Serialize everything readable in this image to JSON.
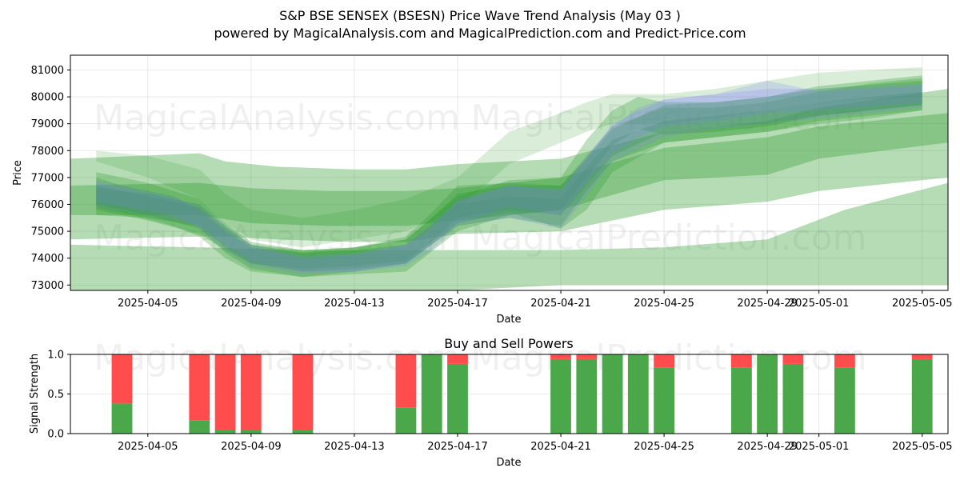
{
  "title": "S&P BSE SENSEX (BSESN) Price Wave Trend Analysis (May 03 )",
  "subtitle": "powered by MagicalAnalysis.com and MagicalPrediction.com and Predict-Price.com",
  "watermarks": [
    "MagicalAnalysis.com",
    "MagicalPrediction.com"
  ],
  "colors": {
    "band_green": "#2e9b2e",
    "band_blue": "#7b7bff",
    "buy": "#4aa84a",
    "sell": "#ff4c4c"
  },
  "chart_data": [
    {
      "type": "area",
      "xlabel": "Date",
      "ylabel": "Price",
      "x_ticks": [
        "2025-04-05",
        "2025-04-09",
        "2025-04-13",
        "2025-04-17",
        "2025-04-21",
        "2025-04-25",
        "2025-04-29",
        "2025-05-01",
        "2025-05-05"
      ],
      "y_ticks": [
        73000,
        74000,
        75000,
        76000,
        77000,
        78000,
        79000,
        80000,
        81000
      ],
      "ylim": [
        72800,
        81550
      ],
      "xlim": [
        "2025-04-02",
        "2025-05-06"
      ],
      "grid": true,
      "series": [
        {
          "x": [
            "2025-04-02",
            "2025-04-07",
            "2025-04-08",
            "2025-04-10",
            "2025-04-13",
            "2025-04-15",
            "2025-04-17",
            "2025-04-21",
            "2025-04-25",
            "2025-04-29",
            "2025-05-01",
            "2025-05-06"
          ],
          "low": [
            74700,
            74800,
            74800,
            74700,
            74600,
            74600,
            74900,
            75000,
            75800,
            76100,
            76500,
            77000
          ],
          "high": [
            77700,
            77900,
            77600,
            77400,
            77300,
            77300,
            77500,
            77700,
            78700,
            79100,
            79600,
            80300
          ]
        },
        {
          "x": [
            "2025-04-02",
            "2025-04-07",
            "2025-04-09",
            "2025-04-12",
            "2025-04-15",
            "2025-04-17",
            "2025-04-21",
            "2025-04-25",
            "2025-04-29",
            "2025-05-01",
            "2025-05-06"
          ],
          "low": [
            75600,
            75600,
            75300,
            75200,
            75200,
            75400,
            75800,
            76900,
            77100,
            77700,
            78300
          ],
          "high": [
            76700,
            76800,
            76600,
            76500,
            76500,
            76600,
            77000,
            78100,
            78500,
            78900,
            79400
          ]
        },
        {
          "x": [
            "2025-04-02",
            "2025-04-07",
            "2025-04-11",
            "2025-04-17",
            "2025-04-21",
            "2025-04-25",
            "2025-04-29",
            "2025-05-02",
            "2025-05-06"
          ],
          "low": [
            72800,
            72700,
            72700,
            72800,
            73000,
            73000,
            73000,
            73000,
            73000
          ],
          "high": [
            74500,
            74400,
            74300,
            74300,
            74300,
            74400,
            74700,
            75800,
            76800
          ]
        },
        {
          "x": [
            "2025-04-03",
            "2025-04-04",
            "2025-04-06",
            "2025-04-07",
            "2025-04-08",
            "2025-04-09",
            "2025-04-11",
            "2025-04-13",
            "2025-04-15",
            "2025-04-16",
            "2025-04-17",
            "2025-04-19",
            "2025-04-21",
            "2025-04-22",
            "2025-04-23",
            "2025-04-25",
            "2025-04-27",
            "2025-04-29",
            "2025-05-01",
            "2025-05-03",
            "2025-05-05"
          ],
          "low": [
            75900,
            75700,
            75200,
            74800,
            74000,
            73500,
            73300,
            73500,
            73800,
            74500,
            75300,
            75700,
            75100,
            75800,
            77200,
            78300,
            78500,
            78700,
            79000,
            79200,
            79500
          ],
          "high": [
            77000,
            76700,
            76300,
            75800,
            75000,
            74400,
            74200,
            74400,
            74800,
            75700,
            76700,
            76800,
            76700,
            77800,
            78900,
            79600,
            79600,
            79800,
            80200,
            80500,
            80700
          ]
        },
        {
          "x": [
            "2025-04-03",
            "2025-04-05",
            "2025-04-07",
            "2025-04-08",
            "2025-04-09",
            "2025-04-11",
            "2025-04-13",
            "2025-04-15",
            "2025-04-16",
            "2025-04-17",
            "2025-04-19",
            "2025-04-21",
            "2025-04-22",
            "2025-04-23",
            "2025-04-25",
            "2025-04-27",
            "2025-04-29",
            "2025-05-01",
            "2025-05-05"
          ],
          "low": [
            75800,
            75400,
            74900,
            74300,
            73800,
            73600,
            73700,
            73900,
            74600,
            75500,
            75800,
            75600,
            76700,
            77800,
            78700,
            78900,
            79000,
            79300,
            79700
          ],
          "high": [
            76700,
            76300,
            75900,
            75100,
            74500,
            74300,
            74400,
            74700,
            75500,
            76400,
            76700,
            76700,
            77700,
            78800,
            79700,
            79800,
            80000,
            80300,
            80600
          ]
        },
        {
          "x": [
            "2025-04-03",
            "2025-04-05",
            "2025-04-07",
            "2025-04-08",
            "2025-04-09",
            "2025-04-11",
            "2025-04-13",
            "2025-04-15",
            "2025-04-17",
            "2025-04-19",
            "2025-04-21",
            "2025-04-22",
            "2025-04-23",
            "2025-04-25",
            "2025-04-27",
            "2025-04-29",
            "2025-05-01",
            "2025-05-05"
          ],
          "low": [
            75600,
            75500,
            75200,
            74400,
            73800,
            73500,
            73600,
            73800,
            75200,
            75500,
            75200,
            76500,
            77600,
            78300,
            78500,
            78700,
            79100,
            79500
          ],
          "high": [
            76600,
            76400,
            76000,
            75200,
            74500,
            74200,
            74300,
            74500,
            76000,
            76300,
            76200,
            77400,
            78400,
            79100,
            79300,
            79500,
            79800,
            80200
          ]
        },
        {
          "x": [
            "2025-04-03",
            "2025-04-05",
            "2025-04-07",
            "2025-04-08",
            "2025-04-09",
            "2025-04-11",
            "2025-04-13",
            "2025-04-15",
            "2025-04-17",
            "2025-04-19",
            "2025-04-21",
            "2025-04-22",
            "2025-04-23",
            "2025-04-24",
            "2025-04-25",
            "2025-04-27",
            "2025-04-29",
            "2025-05-01",
            "2025-05-05"
          ],
          "low": [
            76000,
            75600,
            75100,
            74200,
            73600,
            73300,
            73400,
            73500,
            75000,
            75600,
            75800,
            77000,
            78200,
            78800,
            78600,
            78700,
            78900,
            79300,
            79700
          ],
          "high": [
            77200,
            76800,
            76200,
            75300,
            74600,
            74300,
            74400,
            74700,
            76300,
            76900,
            77000,
            78400,
            79500,
            80000,
            79800,
            79800,
            80000,
            80400,
            80800
          ]
        },
        {
          "x": [
            "2025-04-03",
            "2025-04-05",
            "2025-04-07",
            "2025-04-08",
            "2025-04-09",
            "2025-04-11",
            "2025-04-13",
            "2025-04-15",
            "2025-04-17",
            "2025-04-19",
            "2025-04-21",
            "2025-04-22",
            "2025-04-23",
            "2025-04-25",
            "2025-04-27",
            "2025-04-29",
            "2025-05-01",
            "2025-05-05"
          ],
          "low": [
            77600,
            77000,
            76200,
            75300,
            74700,
            74400,
            74700,
            75000,
            75800,
            77500,
            78300,
            78700,
            79000,
            79000,
            79200,
            79500,
            79800,
            80000
          ],
          "high": [
            78000,
            77800,
            77300,
            76400,
            75800,
            75500,
            75800,
            76200,
            77000,
            78700,
            79400,
            79800,
            80100,
            80100,
            80300,
            80600,
            80900,
            81100
          ]
        }
      ],
      "blue_series": [
        {
          "x": [
            "2025-04-03",
            "2025-04-05",
            "2025-04-07",
            "2025-04-08",
            "2025-04-09",
            "2025-04-11",
            "2025-04-13",
            "2025-04-15",
            "2025-04-16",
            "2025-04-17",
            "2025-04-19",
            "2025-04-21",
            "2025-04-22",
            "2025-04-23",
            "2025-04-25",
            "2025-04-27",
            "2025-04-29",
            "2025-05-01",
            "2025-05-05"
          ],
          "low": [
            75900,
            75600,
            75200,
            74500,
            73900,
            73500,
            73500,
            73700,
            74300,
            75200,
            75500,
            75100,
            76300,
            77600,
            78500,
            78800,
            79000,
            79200,
            79600
          ],
          "high": [
            76800,
            76400,
            76000,
            75200,
            74500,
            74100,
            74200,
            74500,
            75100,
            76200,
            76700,
            76600,
            77700,
            79000,
            79900,
            80100,
            80300,
            80300,
            80500
          ]
        },
        {
          "x": [
            "2025-04-03",
            "2025-04-06",
            "2025-04-07",
            "2025-04-08",
            "2025-04-09",
            "2025-04-11",
            "2025-04-13",
            "2025-04-15",
            "2025-04-17",
            "2025-04-19",
            "2025-04-21",
            "2025-04-22",
            "2025-04-23",
            "2025-04-24",
            "2025-04-25",
            "2025-04-27",
            "2025-04-29",
            "2025-05-01",
            "2025-05-05"
          ],
          "low": [
            76100,
            75600,
            75100,
            74300,
            73700,
            73400,
            73500,
            73800,
            75300,
            75900,
            75600,
            76800,
            77900,
            78500,
            78900,
            79100,
            79400,
            79500,
            79800
          ],
          "high": [
            76900,
            76300,
            75800,
            75000,
            74400,
            74000,
            74100,
            74500,
            76100,
            76700,
            76500,
            77800,
            78900,
            79600,
            79900,
            80100,
            80600,
            80200,
            80400
          ]
        }
      ]
    },
    {
      "type": "bar",
      "title": "Buy and Sell Powers",
      "xlabel": "Date",
      "ylabel": "Signal Strength",
      "ylim": [
        0,
        1.0
      ],
      "y_ticks": [
        "0.0",
        "0.5",
        "1.0"
      ],
      "x_ticks": [
        "2025-04-05",
        "2025-04-09",
        "2025-04-13",
        "2025-04-17",
        "2025-04-21",
        "2025-04-25",
        "2025-04-29",
        "2025-05-01",
        "2025-05-05"
      ],
      "grid": true,
      "series": [
        {
          "name": "Buy",
          "color": "#4aa84a"
        },
        {
          "name": "Sell",
          "color": "#ff4c4c"
        }
      ],
      "dates": [
        "2025-04-04",
        "2025-04-07",
        "2025-04-08",
        "2025-04-09",
        "2025-04-11",
        "2025-04-15",
        "2025-04-16",
        "2025-04-17",
        "2025-04-21",
        "2025-04-22",
        "2025-04-23",
        "2025-04-24",
        "2025-04-25",
        "2025-04-28",
        "2025-04-29",
        "2025-04-30",
        "2025-05-02",
        "2025-05-05"
      ],
      "buy": [
        0.38,
        0.17,
        0.05,
        0.05,
        0.05,
        0.33,
        1.0,
        0.88,
        0.94,
        0.94,
        1.0,
        1.0,
        0.83,
        0.83,
        1.0,
        0.88,
        0.83,
        0.94
      ],
      "sell": [
        0.62,
        0.83,
        0.95,
        0.95,
        0.95,
        0.67,
        0.0,
        0.12,
        0.06,
        0.06,
        0.0,
        0.0,
        0.17,
        0.17,
        0.0,
        0.12,
        0.17,
        0.06
      ]
    }
  ]
}
